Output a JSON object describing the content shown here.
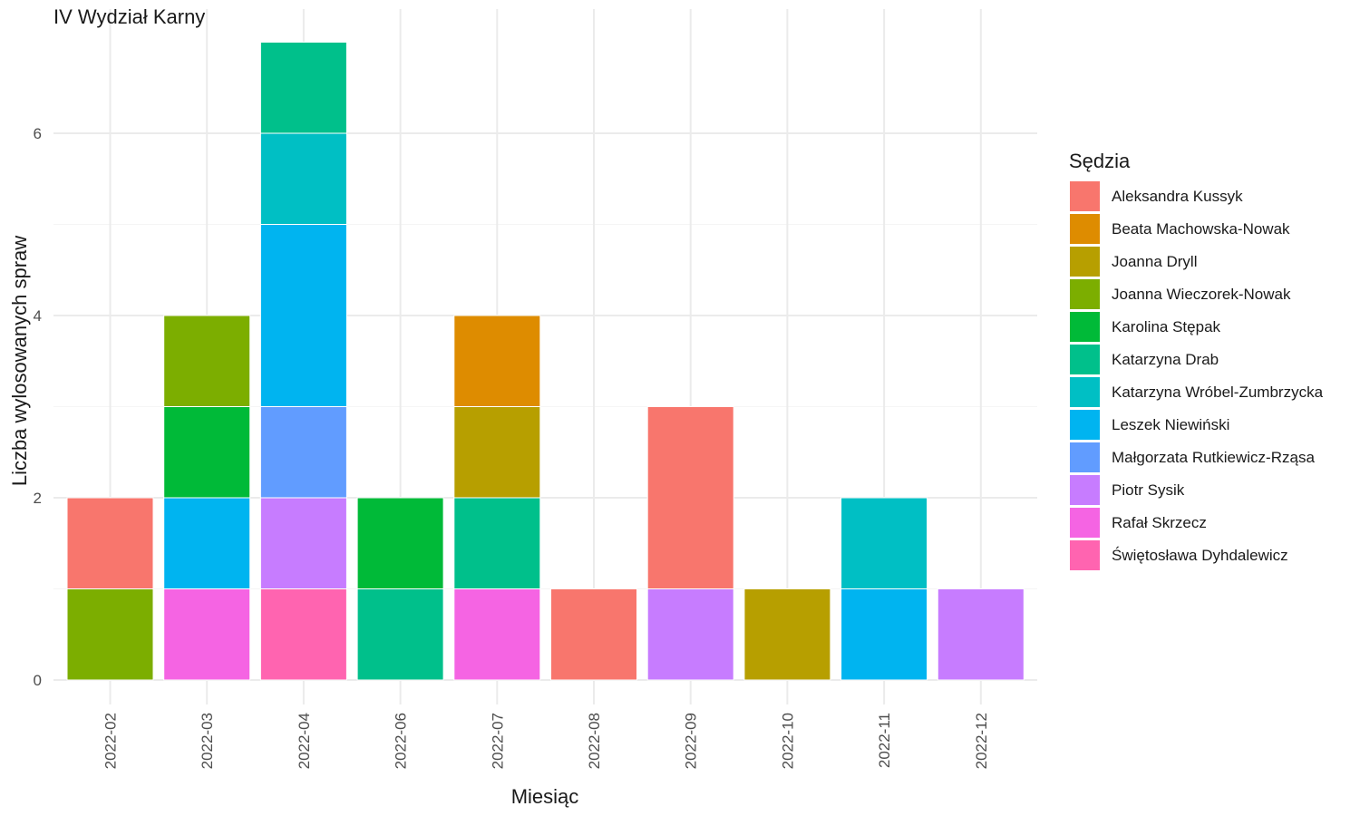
{
  "chart_data": {
    "type": "bar",
    "stacked": true,
    "title": "IV Wydział Karny",
    "xlabel": "Miesiąc",
    "ylabel": "Liczba wylosowanych spraw",
    "ylim": [
      0,
      7
    ],
    "yticks": [
      0,
      2,
      4,
      6
    ],
    "grid": true,
    "legend_position": "right",
    "legend_title": "Sędzia",
    "categories": [
      "2022-02",
      "2022-03",
      "2022-04",
      "2022-06",
      "2022-07",
      "2022-08",
      "2022-09",
      "2022-10",
      "2022-11",
      "2022-12"
    ],
    "series": [
      {
        "name": "Aleksandra Kussyk",
        "color": "#F8766D",
        "values": [
          1,
          0,
          0,
          0,
          0,
          1,
          2,
          0,
          0,
          0
        ]
      },
      {
        "name": "Beata Machowska-Nowak",
        "color": "#DE8C00",
        "values": [
          0,
          0,
          0,
          0,
          1,
          0,
          0,
          0,
          0,
          0
        ]
      },
      {
        "name": "Joanna Dryll",
        "color": "#B79F00",
        "values": [
          0,
          0,
          0,
          0,
          1,
          0,
          0,
          1,
          0,
          0
        ]
      },
      {
        "name": "Joanna Wieczorek-Nowak",
        "color": "#7CAE00",
        "values": [
          1,
          1,
          0,
          0,
          0,
          0,
          0,
          0,
          0,
          0
        ]
      },
      {
        "name": "Karolina Stępak",
        "color": "#00BA38",
        "values": [
          0,
          1,
          0,
          1,
          0,
          0,
          0,
          0,
          0,
          0
        ]
      },
      {
        "name": "Katarzyna Drab",
        "color": "#00C08B",
        "values": [
          0,
          0,
          1,
          1,
          1,
          0,
          0,
          0,
          0,
          0
        ]
      },
      {
        "name": "Katarzyna Wróbel-Zumbrzycka",
        "color": "#00BFC4",
        "values": [
          0,
          0,
          1,
          0,
          0,
          0,
          0,
          0,
          1,
          0
        ]
      },
      {
        "name": "Leszek Niewiński",
        "color": "#00B4F0",
        "values": [
          0,
          1,
          2,
          0,
          0,
          0,
          0,
          0,
          1,
          0
        ]
      },
      {
        "name": "Małgorzata Rutkiewicz-Rząsa",
        "color": "#619CFF",
        "values": [
          0,
          0,
          1,
          0,
          0,
          0,
          0,
          0,
          0,
          0
        ]
      },
      {
        "name": "Piotr Sysik",
        "color": "#C77CFF",
        "values": [
          0,
          0,
          1,
          0,
          0,
          0,
          1,
          0,
          0,
          1
        ]
      },
      {
        "name": "Rafał Skrzecz",
        "color": "#F564E3",
        "values": [
          0,
          1,
          0,
          0,
          1,
          0,
          0,
          0,
          0,
          0
        ]
      },
      {
        "name": "Świętosława Dyhdalewicz",
        "color": "#FF64B0",
        "values": [
          0,
          0,
          1,
          0,
          0,
          0,
          0,
          0,
          0,
          0
        ]
      }
    ]
  }
}
